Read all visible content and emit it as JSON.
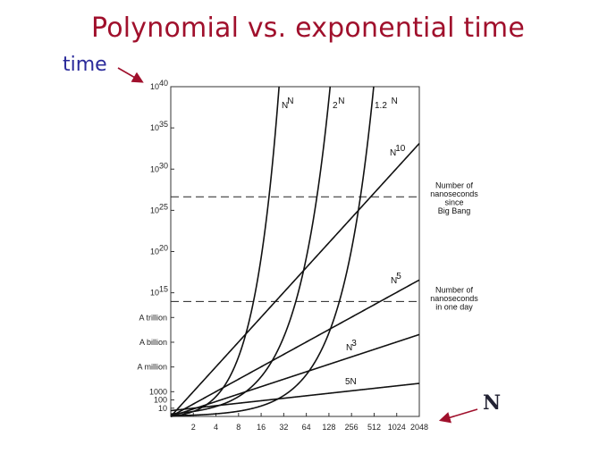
{
  "slide": {
    "title": "Polynomial vs. exponential time",
    "y_callout": "time",
    "x_callout": "N"
  },
  "colors": {
    "title": "#a0102c",
    "time_label": "#2a2a9a",
    "arrows": "#a0102c"
  },
  "chart_data": {
    "type": "line",
    "title": "",
    "xlabel": "N",
    "ylabel": "time",
    "x_scale": "log2",
    "y_scale": "log10",
    "xlim": [
      1,
      2048
    ],
    "ylim": [
      1,
      1e+40
    ],
    "x_ticks": [
      {
        "value": 2,
        "label": "2"
      },
      {
        "value": 4,
        "label": "4"
      },
      {
        "value": 8,
        "label": "8"
      },
      {
        "value": 16,
        "label": "16"
      },
      {
        "value": 32,
        "label": "32"
      },
      {
        "value": 64,
        "label": "64"
      },
      {
        "value": 128,
        "label": "128"
      },
      {
        "value": 256,
        "label": "256"
      },
      {
        "value": 512,
        "label": "512"
      },
      {
        "value": 1024,
        "label": "1024"
      },
      {
        "value": 2048,
        "label": "2048"
      }
    ],
    "y_ticks": [
      {
        "value": 10,
        "label": "10",
        "sup": ""
      },
      {
        "value": 100,
        "label": "100",
        "sup": ""
      },
      {
        "value": 1000,
        "label": "1000",
        "sup": ""
      },
      {
        "value": 1000000.0,
        "label": "A million",
        "sup": ""
      },
      {
        "value": 1000000000.0,
        "label": "A billion",
        "sup": ""
      },
      {
        "value": 1000000000000.0,
        "label": "A trillion",
        "sup": ""
      },
      {
        "value": 1000000000000000.0,
        "label": "10",
        "sup": "15"
      },
      {
        "value": 1e+20,
        "label": "10",
        "sup": "20"
      },
      {
        "value": 1e+25,
        "label": "10",
        "sup": "25"
      },
      {
        "value": 1e+30,
        "label": "10",
        "sup": "30"
      },
      {
        "value": 1e+35,
        "label": "10",
        "sup": "35"
      },
      {
        "value": 1e+40,
        "label": "10",
        "sup": "40"
      }
    ],
    "series": [
      {
        "label_base": "5N",
        "label_sup": "",
        "formula": "5N"
      },
      {
        "label_base": "N",
        "label_sup": "3",
        "formula": "N^3"
      },
      {
        "label_base": "N",
        "label_sup": "5",
        "formula": "N^5"
      },
      {
        "label_base": "N",
        "label_sup": "10",
        "formula": "N^10"
      },
      {
        "label_base": "1.2",
        "label_sup": "N",
        "formula": "1.2^N"
      },
      {
        "label_base": "2",
        "label_sup": "N",
        "formula": "2^N"
      },
      {
        "label_base": "N",
        "label_sup": "N",
        "formula": "N^N"
      }
    ],
    "reference_lines": [
      {
        "value": 4.3e+26,
        "lines": [
          "Number of",
          "nanoseconds",
          "since",
          "Big Bang"
        ]
      },
      {
        "value": 86400000000000.0,
        "lines": [
          "Number of",
          "nanoseconds",
          "in one day"
        ]
      }
    ],
    "grid": false,
    "legend": "none"
  }
}
